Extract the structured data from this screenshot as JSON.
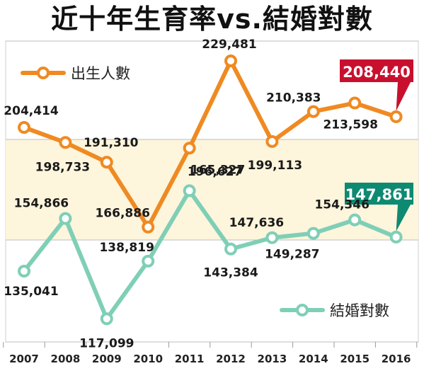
{
  "title": "近十年生育率vs.結婚對數",
  "colors": {
    "births": "#ef8a22",
    "marriages": "#7fcfb6",
    "band": "#fdf5dc",
    "callout_births": "#c8102e",
    "callout_marriages": "#0f8a72"
  },
  "chart_data": {
    "type": "line",
    "categories": [
      "2007",
      "2008",
      "2009",
      "2010",
      "2011",
      "2012",
      "2013",
      "2014",
      "2015",
      "2016"
    ],
    "series": [
      {
        "name": "出生人數",
        "values": [
          204414,
          198733,
          191310,
          166886,
          196627,
          229481,
          199113,
          210383,
          213598,
          208440
        ],
        "labels": [
          "204,414",
          "198,733",
          "191,310",
          "166,886",
          "196,627",
          "229,481",
          "199,113",
          "210,383",
          "213,598",
          "208,440"
        ]
      },
      {
        "name": "結婚對數",
        "values": [
          135041,
          154866,
          117099,
          138819,
          165327,
          143384,
          147636,
          149287,
          154346,
          147861
        ],
        "labels": [
          "135,041",
          "154,866",
          "117,099",
          "138,819",
          "165,327",
          "143,384",
          "147,636",
          "149,287",
          "154,346",
          "147,861"
        ]
      }
    ],
    "highlight": {
      "births": "208,440",
      "marriages": "147,861"
    },
    "legend": "top-left (births), bottom-right (marriages)",
    "grid": true
  }
}
